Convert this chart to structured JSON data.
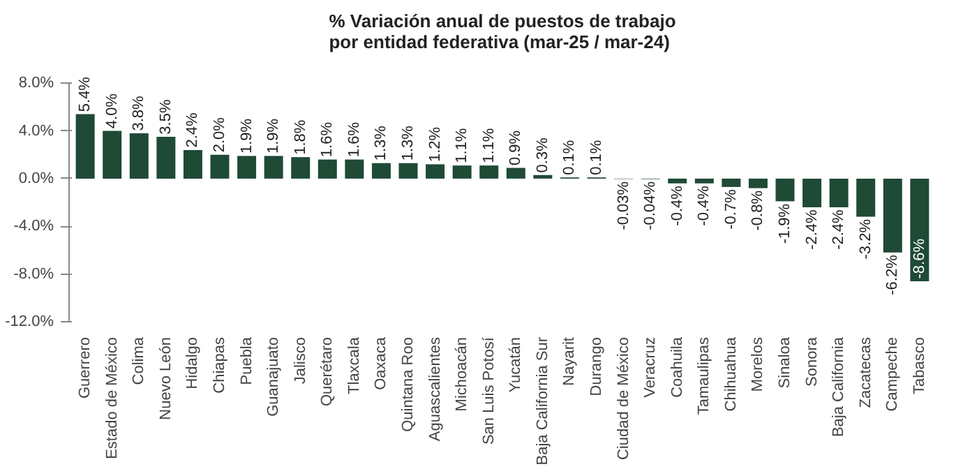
{
  "chart_data": {
    "type": "bar",
    "title": "% Variación anual de puestos de trabajo\npor entidad federativa (mar-25 / mar-24)",
    "categories": [
      "Guerrero",
      "Estado de México",
      "Colima",
      "Nuevo León",
      "Hidalgo",
      "Chiapas",
      "Puebla",
      "Guanajuato",
      "Jalisco",
      "Querétaro",
      "Tlaxcala",
      "Oaxaca",
      "Quintana Roo",
      "Aguascalientes",
      "Michoacán",
      "San Luis Potosí",
      "Yucatán",
      "Baja California Sur",
      "Nayarit",
      "Durango",
      "Ciudad de México",
      "Veracruz",
      "Coahuila",
      "Tamaulipas",
      "Chihuahua",
      "Morelos",
      "Sinaloa",
      "Sonora",
      "Baja California",
      "Zacatecas",
      "Campeche",
      "Tabasco"
    ],
    "values": [
      5.4,
      4.0,
      3.8,
      3.5,
      2.4,
      2.0,
      1.9,
      1.9,
      1.8,
      1.6,
      1.6,
      1.3,
      1.3,
      1.2,
      1.1,
      1.1,
      0.9,
      0.3,
      0.1,
      0.1,
      -0.03,
      -0.04,
      -0.4,
      -0.4,
      -0.7,
      -0.8,
      -1.9,
      -2.4,
      -2.4,
      -3.2,
      -6.2,
      -8.6
    ],
    "value_labels": [
      "5.4%",
      "4.0%",
      "3.8%",
      "3.5%",
      "2.4%",
      "2.0%",
      "1.9%",
      "1.9%",
      "1.8%",
      "1.6%",
      "1.6%",
      "1.3%",
      "1.3%",
      "1.2%",
      "1.1%",
      "1.1%",
      "0.9%",
      "0.3%",
      "0.1%",
      "0.1%",
      "-0.03%",
      "-0.04%",
      "-0.4%",
      "-0.4%",
      "-0.7%",
      "-0.8%",
      "-1.9%",
      "-2.4%",
      "-2.4%",
      "-3.2%",
      "-6.2%",
      "-8.6%"
    ],
    "color": "#1f4a36",
    "ylim": [
      -12,
      8
    ],
    "yticks": [
      {
        "value": -12,
        "label": "-12.0%"
      },
      {
        "value": -8,
        "label": "-8.0%"
      },
      {
        "value": -4,
        "label": "-4.0%"
      },
      {
        "value": 0,
        "label": "0.0%"
      },
      {
        "value": 4,
        "label": "4.0%"
      },
      {
        "value": 8,
        "label": "8.0%"
      }
    ],
    "grid": false
  }
}
